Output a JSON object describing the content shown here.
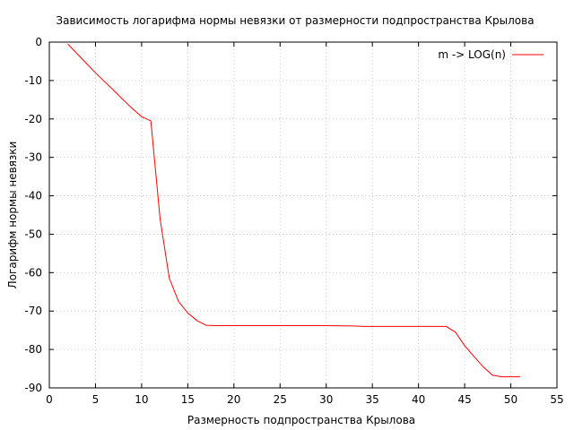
{
  "chart_data": {
    "type": "line",
    "title": "Зависимость логарифма нормы невязки от размерности подпространства Крылова",
    "xlabel": "Размерность подпространства Крылова",
    "ylabel": "Логарифм нормы невязки",
    "xlim": [
      0,
      55
    ],
    "ylim": [
      -90,
      0
    ],
    "xticks": [
      0,
      5,
      10,
      15,
      20,
      25,
      30,
      35,
      40,
      45,
      50,
      55
    ],
    "yticks": [
      0,
      -10,
      -20,
      -30,
      -40,
      -50,
      -60,
      -70,
      -80,
      -90
    ],
    "grid": true,
    "legend_position": "top-right",
    "series": [
      {
        "name": "m -> LOG(n)",
        "color": "#ff0000",
        "x": [
          2,
          3,
          4,
          5,
          6,
          7,
          8,
          9,
          10,
          11,
          12,
          13,
          14,
          15,
          16,
          17,
          18,
          20,
          25,
          30,
          33,
          34,
          35,
          40,
          43,
          44,
          45,
          46,
          47,
          48,
          49,
          50,
          51
        ],
        "y": [
          -0.5,
          -3,
          -5.5,
          -8,
          -10.3,
          -12.6,
          -15,
          -17.3,
          -19.4,
          -20.5,
          -46,
          -61.5,
          -67.5,
          -70.5,
          -72.5,
          -73.7,
          -73.8,
          -73.8,
          -73.8,
          -73.8,
          -73.9,
          -74,
          -74,
          -74,
          -74,
          -75.5,
          -79,
          -81.8,
          -84.5,
          -86.7,
          -87.1,
          -87.1,
          -87.1
        ]
      }
    ]
  }
}
